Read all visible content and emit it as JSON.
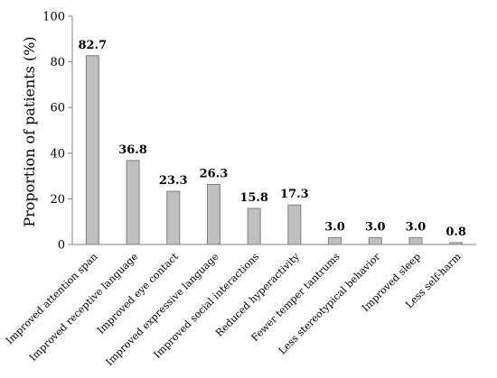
{
  "chart_data": {
    "type": "bar",
    "title": "",
    "xlabel": "",
    "ylabel": "Proportion of patients (%)",
    "ylim": [
      0,
      100
    ],
    "yticks": [
      0,
      20,
      40,
      60,
      80,
      100
    ],
    "grid": false,
    "legend": "none",
    "bar_color": "#c0c0c0",
    "bar_edge_color": "#7f7f7f",
    "categories": [
      "Improved attention span",
      "Improved receptive language",
      "Improved eye contact",
      "Improved expressive language",
      "Improved social interactions",
      "Reduced hyperactivity",
      "Fewer temper tantrums",
      "Less stereotypical behavior",
      "Improved sleep",
      "Less self-harm"
    ],
    "values": [
      82.7,
      36.8,
      23.3,
      26.3,
      15.8,
      17.3,
      3.0,
      3.0,
      3.0,
      0.8
    ],
    "data_labels": [
      "82.7",
      "36.8",
      "23.3",
      "26.3",
      "15.8",
      "17.3",
      "3.0",
      "3.0",
      "3.0",
      "0.8"
    ]
  }
}
